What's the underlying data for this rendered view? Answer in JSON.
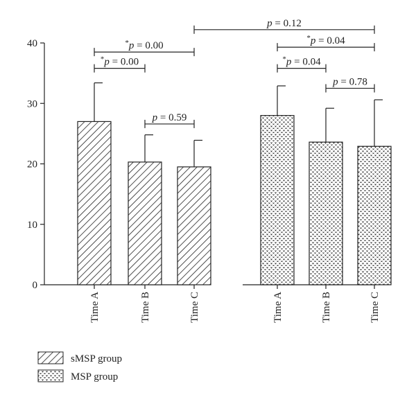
{
  "chart_data": {
    "type": "bar",
    "ylim": [
      0,
      40
    ],
    "yticks": [
      0,
      10,
      20,
      30,
      40
    ],
    "groups": [
      {
        "name": "sMSP group",
        "pattern": "hatch",
        "categories": [
          "Time A",
          "Time B",
          "Time C"
        ],
        "values": [
          27.0,
          20.3,
          19.5
        ],
        "errors": [
          6.4,
          4.5,
          4.4
        ]
      },
      {
        "name": "MSP group",
        "pattern": "dots",
        "categories": [
          "Time A",
          "Time B",
          "Time C"
        ],
        "values": [
          28.0,
          23.6,
          22.9
        ],
        "errors": [
          4.9,
          5.6,
          7.7
        ]
      }
    ],
    "annotations": [
      {
        "from": [
          0,
          0
        ],
        "to": [
          0,
          1
        ],
        "star": "*",
        "p": "p",
        "value": "= 0.00",
        "y": 35.8
      },
      {
        "from": [
          0,
          0
        ],
        "to": [
          0,
          2
        ],
        "star": "*",
        "p": "p",
        "value": "= 0.00",
        "y": 38.5
      },
      {
        "from": [
          0,
          1
        ],
        "to": [
          0,
          2
        ],
        "star": "",
        "p": "p",
        "value": "= 0.59",
        "y": 26.6
      },
      {
        "from": [
          0,
          2
        ],
        "to": [
          1,
          2
        ],
        "star": "",
        "p": "p",
        "value": "= 0.12",
        "y": 42.2
      },
      {
        "from": [
          1,
          0
        ],
        "to": [
          1,
          1
        ],
        "star": "*",
        "p": "p",
        "value": "= 0.04",
        "y": 35.8
      },
      {
        "from": [
          1,
          0
        ],
        "to": [
          1,
          2
        ],
        "star": "*",
        "p": "p",
        "value": "= 0.04",
        "y": 39.3
      },
      {
        "from": [
          1,
          1
        ],
        "to": [
          1,
          2
        ],
        "star": "",
        "p": "p",
        "value": "= 0.78",
        "y": 32.5
      }
    ]
  }
}
